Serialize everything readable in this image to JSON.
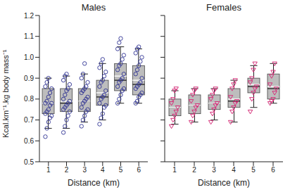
{
  "chart_data": [
    {
      "type": "box",
      "title": "Males",
      "x_label": "Distance (km)",
      "y_label": "Kcal.km⁻¹.kg body mass⁻¹",
      "categories": [
        "1",
        "2",
        "3",
        "4",
        "5",
        "6"
      ],
      "ylim": [
        0.5,
        1.2
      ],
      "yticks": [
        0.5,
        0.6,
        0.7,
        0.8,
        0.9,
        {
          "value": 1,
          "label": "1.0"
        },
        1.1,
        1.2
      ],
      "color": "#2e3192",
      "marker": "circle",
      "whisker_low": [
        0.66,
        0.66,
        0.69,
        0.7,
        0.78,
        0.78
      ],
      "q1": [
        0.73,
        0.74,
        0.74,
        0.77,
        0.84,
        0.82
      ],
      "median": [
        0.78,
        0.78,
        0.79,
        0.81,
        0.89,
        0.87
      ],
      "mean": [
        0.78,
        0.79,
        0.79,
        0.83,
        0.91,
        0.89
      ],
      "q3": [
        0.85,
        0.85,
        0.85,
        0.89,
        0.97,
        0.96
      ],
      "whisker_high": [
        0.9,
        0.91,
        0.92,
        0.97,
        1.05,
        1.04
      ],
      "points": [
        [
          0.62,
          0.66,
          0.69,
          0.71,
          0.72,
          0.73,
          0.74,
          0.75,
          0.77,
          0.78,
          0.78,
          0.79,
          0.81,
          0.83,
          0.85,
          0.86,
          0.88,
          0.9
        ],
        [
          0.64,
          0.67,
          0.7,
          0.72,
          0.74,
          0.75,
          0.76,
          0.77,
          0.78,
          0.79,
          0.8,
          0.82,
          0.84,
          0.85,
          0.87,
          0.89,
          0.91,
          0.92
        ],
        [
          0.67,
          0.7,
          0.72,
          0.74,
          0.75,
          0.76,
          0.78,
          0.79,
          0.8,
          0.81,
          0.83,
          0.84,
          0.85,
          0.86,
          0.88,
          0.9,
          0.92,
          0.97
        ],
        [
          0.68,
          0.71,
          0.73,
          0.76,
          0.77,
          0.78,
          0.8,
          0.81,
          0.82,
          0.84,
          0.86,
          0.88,
          0.89,
          0.91,
          0.93,
          0.95,
          0.97,
          0.99
        ],
        [
          0.78,
          0.8,
          0.82,
          0.84,
          0.85,
          0.86,
          0.88,
          0.89,
          0.9,
          0.92,
          0.94,
          0.96,
          0.97,
          0.99,
          1.01,
          1.04,
          1.07,
          1.09
        ],
        [
          0.78,
          0.79,
          0.81,
          0.82,
          0.83,
          0.85,
          0.86,
          0.87,
          0.88,
          0.9,
          0.92,
          0.94,
          0.96,
          0.98,
          1.0,
          1.02,
          1.04,
          1.05
        ]
      ]
    },
    {
      "type": "box",
      "title": "Females",
      "x_label": "Distance (km)",
      "categories": [
        "1",
        "2",
        "3",
        "4",
        "5",
        "6"
      ],
      "ylim": [
        0.5,
        1.2
      ],
      "yticks": [
        0.5,
        0.6,
        0.7,
        0.8,
        0.9,
        {
          "value": 1,
          "label": "1.0"
        },
        1.1,
        1.2
      ],
      "tick_labels": "x",
      "color": "#d6307a",
      "marker": "triangle",
      "whisker_low": [
        0.68,
        0.69,
        0.7,
        0.69,
        0.76,
        0.78
      ],
      "q1": [
        0.72,
        0.73,
        0.75,
        0.76,
        0.83,
        0.8
      ],
      "median": [
        0.76,
        0.77,
        0.78,
        0.79,
        0.86,
        0.85
      ],
      "mean": [
        0.76,
        0.77,
        0.78,
        0.8,
        0.87,
        0.86
      ],
      "q3": [
        0.8,
        0.82,
        0.82,
        0.85,
        0.9,
        0.92
      ],
      "whisker_high": [
        0.84,
        0.85,
        0.85,
        0.89,
        0.96,
        0.97
      ],
      "points": [
        [
          0.67,
          0.7,
          0.72,
          0.74,
          0.76,
          0.78,
          0.8,
          0.84,
          0.85
        ],
        [
          0.69,
          0.72,
          0.74,
          0.76,
          0.77,
          0.79,
          0.82,
          0.84,
          0.85
        ],
        [
          0.69,
          0.73,
          0.75,
          0.77,
          0.78,
          0.8,
          0.82,
          0.84,
          0.85
        ],
        [
          0.69,
          0.74,
          0.76,
          0.78,
          0.79,
          0.81,
          0.85,
          0.87,
          0.89
        ],
        [
          0.74,
          0.8,
          0.83,
          0.85,
          0.86,
          0.88,
          0.9,
          0.94,
          0.97
        ],
        [
          0.78,
          0.79,
          0.8,
          0.83,
          0.85,
          0.87,
          0.91,
          0.93,
          0.97
        ]
      ]
    }
  ]
}
